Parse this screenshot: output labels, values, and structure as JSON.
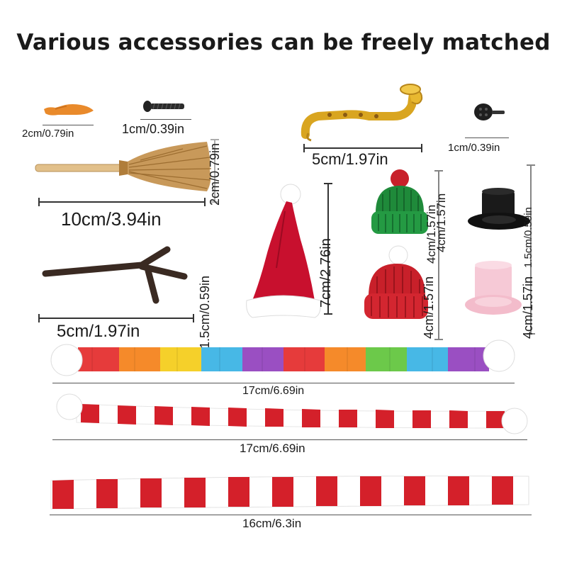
{
  "headline": "Various accessories can be freely matched",
  "labels": {
    "carrot": "2cm/0.79in",
    "screw": "1cm/0.39in",
    "saxophone": "5cm/1.97in",
    "button": "1cm/0.39in",
    "broom_height": "2cm/0.79in",
    "broom": "10cm/3.94in",
    "santa_hat": "7cm/2.76in",
    "green_beanie_a": "4cm/1.57in",
    "green_beanie_b": "4cm/1.57in",
    "top_hat_height": "1.5cm/0.59in",
    "arms_thickness": "1.5cm/0.59in",
    "red_beanie": "4cm/1.57in",
    "pink_top_hat": "4cm/1.57in",
    "arms": "5cm/1.97in",
    "rainbow_scarf": "17cm/6.69in",
    "striped_scarf_pompom": "17cm/6.69in",
    "striped_scarf_flat": "16cm/6.3in"
  },
  "colors": {
    "santa_red": "#c8102e",
    "knit_green": "#1f8a3a",
    "knit_red": "#c8202a",
    "gold": "#d9a520",
    "pink": "#f6c9d6",
    "twig": "#3a2a22"
  },
  "icons": [
    "carrot-nose-icon",
    "screw-icon",
    "saxophone-icon",
    "button-icon",
    "broom-icon",
    "twig-arms-icon",
    "santa-hat-icon",
    "green-beanie-icon",
    "red-beanie-icon",
    "black-top-hat-icon",
    "pink-top-hat-icon",
    "rainbow-scarf-icon",
    "red-white-scarf-icon",
    "flat-striped-scarf-icon"
  ]
}
